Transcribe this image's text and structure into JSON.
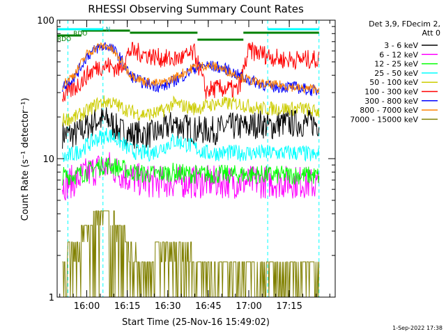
{
  "chart_data": {
    "type": "line",
    "title": "RHESSI Observing Summary Count Rates",
    "xlabel": "Start Time (25-Nov-16 15:49:02)",
    "ylabel": "Count Rate (s⁻¹ detector⁻¹)",
    "yscale": "log",
    "ylim": [
      1,
      100
    ],
    "xlim": [
      "15:49:02",
      "17:32:00"
    ],
    "x_ticks": [
      "16:00",
      "16:15",
      "16:30",
      "16:45",
      "17:00",
      "17:15"
    ],
    "y_ticks": [
      "1",
      "10",
      "100"
    ],
    "legend_header": [
      "Det 3,9, FDecim 2,",
      "Att 0"
    ],
    "legend_position": "right",
    "footer": "1-Sep-2022 17:38",
    "flag_labels": [
      "RDO",
      "RDO",
      "N"
    ],
    "x": [
      "15:51",
      "15:56",
      "16:00",
      "16:04",
      "16:08",
      "16:12",
      "16:16",
      "16:20",
      "16:24",
      "16:28",
      "16:32",
      "16:36",
      "16:40",
      "16:44",
      "16:48",
      "16:52",
      "16:56",
      "17:00",
      "17:04",
      "17:08",
      "17:12",
      "17:16",
      "17:20",
      "17:24"
    ],
    "series": [
      {
        "name": "3 - 6 keV",
        "color": "#000000",
        "values": [
          15,
          15,
          17,
          19,
          19,
          16,
          15,
          15,
          15,
          16,
          18,
          17,
          16,
          16,
          16,
          17,
          17,
          17,
          18,
          17,
          18,
          18,
          18,
          18
        ]
      },
      {
        "name": "6 - 12 keV",
        "color": "#ff00ff",
        "values": [
          6.5,
          7.0,
          7.8,
          8.5,
          8.8,
          8.0,
          7.2,
          7.0,
          6.8,
          6.8,
          6.8,
          6.8,
          6.8,
          6.8,
          6.8,
          6.8,
          6.8,
          6.8,
          6.8,
          6.8,
          6.8,
          6.8,
          6.8,
          6.5
        ]
      },
      {
        "name": "12 - 25 keV",
        "color": "#00ff00",
        "values": [
          7.5,
          7.6,
          8.0,
          8.8,
          9.0,
          8.6,
          8.1,
          7.8,
          7.7,
          7.8,
          8.0,
          7.8,
          7.7,
          7.7,
          7.7,
          7.7,
          7.7,
          7.7,
          7.7,
          7.6,
          7.6,
          7.6,
          7.6,
          7.5
        ]
      },
      {
        "name": "25 - 50 keV",
        "color": "#00ffff",
        "values": [
          10,
          11,
          12.5,
          14,
          15,
          13.5,
          11.5,
          11,
          11,
          12,
          13.5,
          13,
          12,
          11,
          11,
          11,
          11,
          11,
          11,
          11,
          11,
          11,
          11,
          10.5
        ]
      },
      {
        "name": "50 - 100 keV",
        "color": "#cccc00",
        "values": [
          19,
          20,
          22,
          25,
          26,
          24,
          22,
          21,
          21,
          22,
          25,
          24,
          23,
          24,
          25,
          25,
          25,
          24,
          23,
          23,
          23,
          23,
          23,
          22
        ]
      },
      {
        "name": "100 - 300 keV",
        "color": "#ff0000",
        "values": [
          28,
          33,
          40,
          46,
          47,
          44,
          60,
          58,
          55,
          53,
          52,
          54,
          58,
          31,
          32,
          32,
          31,
          60,
          58,
          55,
          52,
          52,
          52,
          52
        ]
      },
      {
        "name": "300 - 800 keV",
        "color": "#0000ff",
        "values": [
          33,
          40,
          55,
          63,
          66,
          55,
          40,
          36,
          34,
          33,
          36,
          40,
          45,
          47,
          46,
          44,
          40,
          37,
          35,
          33,
          33,
          33,
          32,
          31
        ]
      },
      {
        "name": "800 - 7000 keV",
        "color": "#ff8000",
        "values": [
          34,
          42,
          57,
          64,
          65,
          53,
          41,
          37,
          35,
          35,
          38,
          42,
          46,
          47,
          46,
          43,
          40,
          37,
          35,
          34,
          34,
          33,
          32,
          32
        ]
      },
      {
        "name": "7000 - 15000 keV",
        "color": "#808000",
        "values": [
          2.0,
          2.5,
          3.3,
          4.0,
          4.2,
          3.5,
          2.5,
          2.0,
          2.0,
          2.5,
          2.7,
          2.5,
          2.0,
          1.8,
          1.8,
          1.8,
          1.8,
          1.8,
          1.8,
          1.8,
          1.8,
          1.8,
          1.8,
          1.8
        ]
      }
    ]
  }
}
